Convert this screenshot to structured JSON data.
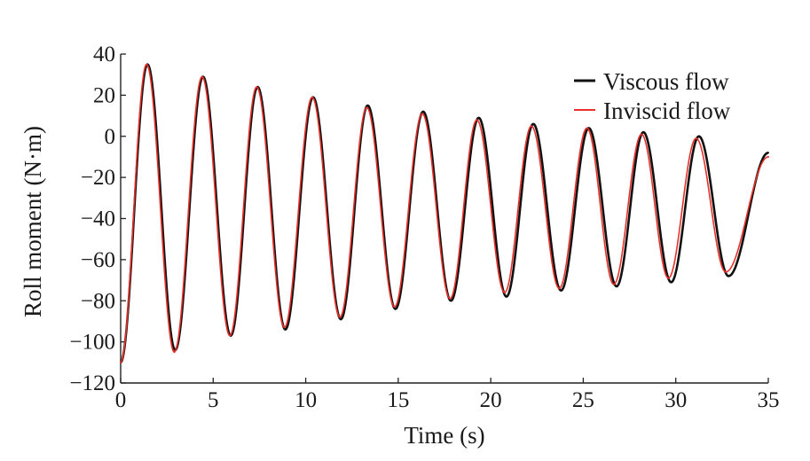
{
  "chart_data": {
    "type": "line",
    "xlabel": "Time (s)",
    "ylabel": "Roll moment (N·m)",
    "xlim": [
      0,
      35
    ],
    "ylim": [
      -120,
      40
    ],
    "x_ticks": [
      0,
      5,
      10,
      15,
      20,
      25,
      30,
      35
    ],
    "y_ticks": [
      40,
      20,
      0,
      -20,
      -40,
      -60,
      -80,
      -100,
      -120
    ],
    "x_tick_labels": [
      "0",
      "5",
      "10",
      "15",
      "20",
      "25",
      "30",
      "35"
    ],
    "y_tick_labels": [
      "40",
      "20",
      "0",
      "−20",
      "−40",
      "−60",
      "−80",
      "−100",
      "−120"
    ],
    "grid": false,
    "legend_position": "top-right",
    "series": [
      {
        "name": "Viscous flow",
        "color": "#111111",
        "x": [
          0,
          1.45,
          2.95,
          4.45,
          5.95,
          7.4,
          8.9,
          10.4,
          11.9,
          13.35,
          14.85,
          16.35,
          17.85,
          19.35,
          20.85,
          22.3,
          23.8,
          25.3,
          26.8,
          28.25,
          29.75,
          31.25,
          32.85,
          35
        ],
        "y": [
          -110,
          35,
          -104,
          29,
          -97,
          24,
          -94,
          19,
          -89,
          15,
          -84,
          12,
          -80,
          9,
          -78,
          6,
          -75,
          4,
          -73,
          2,
          -71,
          0,
          -68,
          -8
        ]
      },
      {
        "name": "Inviscid flow",
        "color": "#e8312b",
        "x": [
          0,
          1.4,
          2.9,
          4.4,
          5.9,
          7.35,
          8.85,
          10.35,
          11.85,
          13.3,
          14.8,
          16.3,
          17.8,
          19.25,
          20.75,
          22.2,
          23.7,
          25.2,
          26.65,
          28.15,
          29.6,
          31.1,
          32.7,
          35
        ],
        "y": [
          -110,
          35,
          -105,
          29,
          -97,
          24,
          -93,
          19,
          -88,
          14,
          -83,
          11,
          -79,
          8,
          -76,
          5,
          -74,
          4,
          -72,
          1,
          -69,
          -1,
          -66,
          -10
        ]
      }
    ]
  }
}
